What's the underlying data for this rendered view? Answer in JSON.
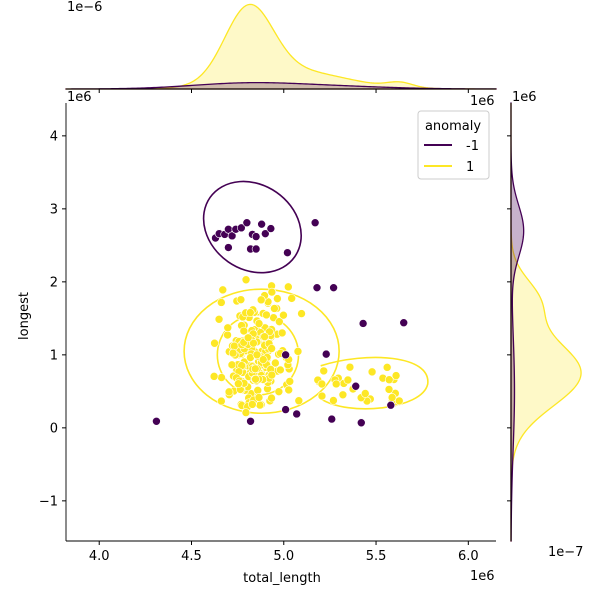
{
  "chart_data": {
    "type": "scatter",
    "kind": "jointplot",
    "xlabel": "total_length",
    "ylabel": "longest",
    "xlim": [
      3820000.0,
      6150000.0
    ],
    "ylim": [
      -1550000.0,
      4450000.0
    ],
    "x_ticks": [
      4.0,
      4.5,
      5.0,
      5.5,
      6.0
    ],
    "y_ticks": [
      -1,
      0,
      1,
      2,
      3,
      4
    ],
    "x_offset_label": "1e6",
    "y_offset_label": "1e6",
    "top_marginal_offset_label": "1e−6",
    "right_marginal_offset_label": "1e−7",
    "legend": {
      "title": "anomaly",
      "placement": "upper-right",
      "entries": [
        {
          "label": "-1",
          "color": "#440154"
        },
        {
          "label": "1",
          "color": "#fde725"
        }
      ]
    },
    "series": [
      {
        "name": "-1",
        "color": "#440154",
        "points": [
          [
            4630000.0,
            2600000.0
          ],
          [
            4650000.0,
            2660000.0
          ],
          [
            4680000.0,
            2650000.0
          ],
          [
            4700000.0,
            2720000.0
          ],
          [
            4720000.0,
            2630000.0
          ],
          [
            4740000.0,
            2720000.0
          ],
          [
            4770000.0,
            2740000.0
          ],
          [
            4800000.0,
            2810000.0
          ],
          [
            4830000.0,
            2650000.0
          ],
          [
            4850000.0,
            2620000.0
          ],
          [
            4880000.0,
            2790000.0
          ],
          [
            4900000.0,
            2660000.0
          ],
          [
            4930000.0,
            2730000.0
          ],
          [
            4820000.0,
            2450000.0
          ],
          [
            4700000.0,
            2470000.0
          ],
          [
            4850000.0,
            2450000.0
          ],
          [
            5020000.0,
            2400000.0
          ],
          [
            5170000.0,
            2810000.0
          ],
          [
            5180000.0,
            1920000.0
          ],
          [
            5270000.0,
            1920000.0
          ],
          [
            5430000.0,
            1430000.0
          ],
          [
            5650000.0,
            1440000.0
          ],
          [
            5010000.0,
            1000000.0
          ],
          [
            5230000.0,
            1010000.0
          ],
          [
            5390000.0,
            570000.0
          ],
          [
            5580000.0,
            310000.0
          ],
          [
            5010000.0,
            250000.0
          ],
          [
            5070000.0,
            190000.0
          ],
          [
            5260000.0,
            120000.0
          ],
          [
            5420000.0,
            70000.0
          ],
          [
            4820000.0,
            90000.0
          ],
          [
            4310000.0,
            90000.0
          ]
        ]
      },
      {
        "name": "1",
        "color": "#fde725"
      }
    ],
    "kde_contours": {
      "-1": [
        {
          "cx": 4830000.0,
          "cy": 2750000.0,
          "rx": 280000.0,
          "ry": 580000.0,
          "rot": 35
        }
      ],
      "1": [
        {
          "cx": 4880000.0,
          "cy": 1050000.0,
          "rx": 420000.0,
          "ry": 850000.0,
          "rot": 0
        },
        {
          "cx": 4860000.0,
          "cy": 1000000.0,
          "rx": 220000.0,
          "ry": 550000.0,
          "rot": 0
        }
      ]
    },
    "top_marginal": {
      "x_peak": 4810000.0,
      "peaks_1": [
        [
          4810000.0,
          130000.0,
          1.0
        ],
        [
          5050000.0,
          280000.0,
          0.25
        ],
        [
          5630000.0,
          70000.0,
          0.07
        ]
      ],
      "peaks_minus1": [
        [
          4800000.0,
          300000.0,
          0.08
        ],
        [
          5300000.0,
          300000.0,
          0.03
        ]
      ]
    },
    "right_marginal": {
      "peaks_1": [
        [
          750000.0,
          450000.0,
          1.0
        ],
        [
          1750000.0,
          300000.0,
          0.35
        ]
      ],
      "peaks_minus1": [
        [
          2700000.0,
          350000.0,
          0.9
        ],
        [
          500000.0,
          800000.0,
          0.25
        ]
      ]
    }
  }
}
